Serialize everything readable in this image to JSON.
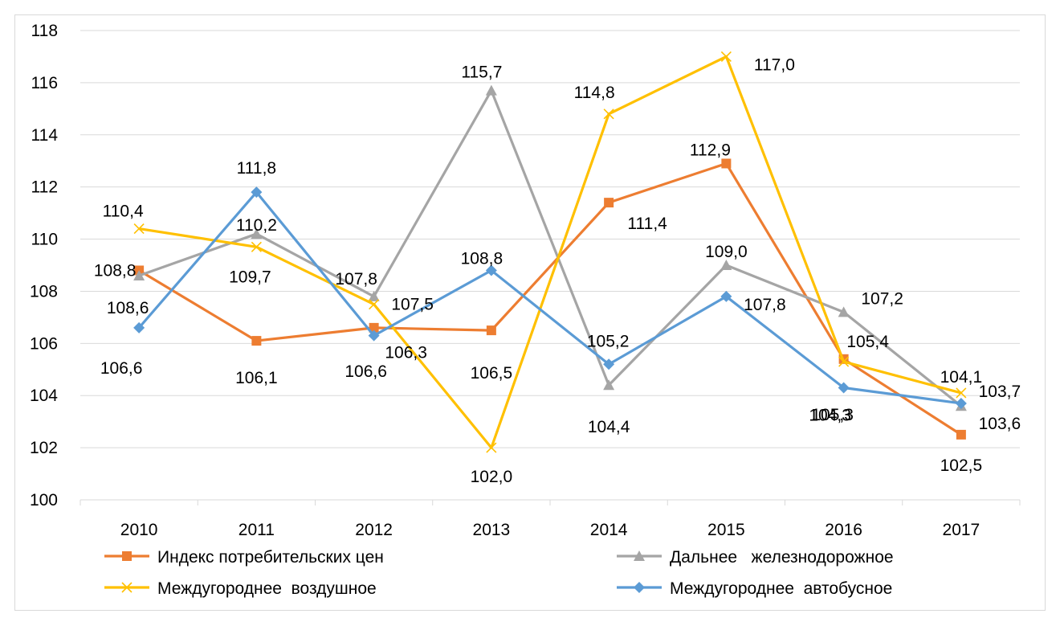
{
  "chart_data": {
    "type": "line",
    "title": "",
    "xlabel": "",
    "ylabel": "",
    "categories": [
      "2010",
      "2011",
      "2012",
      "2013",
      "2014",
      "2015",
      "2016",
      "2017"
    ],
    "ylim": [
      100,
      118
    ],
    "yticks": [
      100,
      102,
      104,
      106,
      108,
      110,
      112,
      114,
      116,
      118
    ],
    "grid": "horizontal",
    "legend_position": "bottom",
    "series": [
      {
        "name": "Индекс потребительских цен",
        "color": "#ED7D31",
        "marker": "square",
        "values": [
          108.8,
          106.1,
          106.6,
          106.5,
          111.4,
          112.9,
          105.4,
          102.5
        ],
        "labels": [
          "108,8",
          "106,1",
          "106,6",
          "106,5",
          "111,4",
          "112,9",
          "105,4",
          "102,5"
        ]
      },
      {
        "name": "Дальнее   железнодорожное",
        "color": "#A5A5A5",
        "marker": "triangle",
        "values": [
          108.6,
          110.2,
          107.8,
          115.7,
          104.4,
          109.0,
          107.2,
          103.6
        ],
        "labels": [
          "108,6",
          "110,2",
          "107,8",
          "115,7",
          "104,4",
          "109,0",
          "107,2",
          "103,6"
        ]
      },
      {
        "name": "Междугороднее  воздушное",
        "color": "#FFC000",
        "marker": "x",
        "values": [
          110.4,
          109.7,
          107.5,
          102.0,
          114.8,
          117.0,
          105.3,
          104.1
        ],
        "labels": [
          "110,4",
          "109,7",
          "107,5",
          "102,0",
          "114,8",
          "117,0",
          "105,3",
          "104,1"
        ]
      },
      {
        "name": "Междугороднее  автобусное",
        "color": "#5B9BD5",
        "marker": "diamond",
        "values": [
          106.6,
          111.8,
          106.3,
          108.8,
          105.2,
          107.8,
          104.3,
          103.7
        ],
        "labels": [
          "106,6",
          "111,8",
          "106,3",
          "108,8",
          "105,2",
          "107,8",
          "104,3",
          "103,7"
        ]
      }
    ]
  }
}
